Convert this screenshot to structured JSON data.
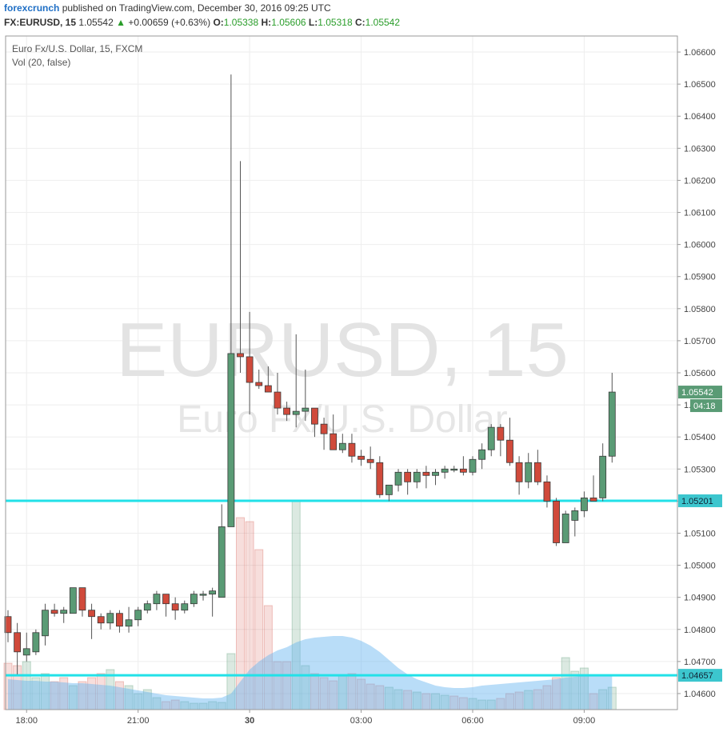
{
  "header": {
    "publisher": "forexcrunch",
    "published_text": "published on TradingView.com, December 30, 2016 09:25 UTC",
    "symbol": "FX:EURUSD, 15",
    "last": "1.05542",
    "change_arrow": "▲",
    "change": "+0.00659 (+0.63%)",
    "o_label": "O:",
    "o_value": "1.05338",
    "h_label": "H:",
    "h_value": "1.05606",
    "l_label": "L:",
    "l_value": "1.05318",
    "c_label": "C:",
    "c_value": "1.05542"
  },
  "legend": {
    "series_name": "Euro Fx/U.S. Dollar, 15, FXCM",
    "volume_name": "Vol (20, false)"
  },
  "watermark": {
    "line1": "EURUSD, 15",
    "line2": "Euro Fx/U.S. Dollar"
  },
  "colors": {
    "up": "#5a9b75",
    "down": "#d04a3b",
    "level_line": "#22e1e8",
    "volume_ma": "#9ed0f5",
    "price_tag": "#5a9b75",
    "level_tag": "#3cc6ce"
  },
  "chart_data": {
    "type": "candlestick",
    "y_axis": {
      "range": [
        1.0455,
        1.0665
      ],
      "ticks": [
        "1.06600",
        "1.06500",
        "1.06400",
        "1.06300",
        "1.06200",
        "1.06100",
        "1.06000",
        "1.05900",
        "1.05800",
        "1.05700",
        "1.05600",
        "1.05500",
        "1.05400",
        "1.05300",
        "1.05200",
        "1.05100",
        "1.05000",
        "1.04900",
        "1.04800",
        "1.04700",
        "1.04600"
      ]
    },
    "x_axis": {
      "ticks": [
        {
          "label": "18:00",
          "index": 2
        },
        {
          "label": "21:00",
          "index": 14
        },
        {
          "label": "30",
          "index": 26
        },
        {
          "label": "03:00",
          "index": 38
        },
        {
          "label": "06:00",
          "index": 50
        },
        {
          "label": "09:00",
          "index": 62
        }
      ]
    },
    "candles": [
      [
        1.0484,
        1.0486,
        1.0476,
        1.0479
      ],
      [
        1.0479,
        1.0482,
        1.0466,
        1.0473
      ],
      [
        1.0472,
        1.0479,
        1.047,
        1.0474
      ],
      [
        1.0473,
        1.048,
        1.0472,
        1.0479
      ],
      [
        1.0478,
        1.0488,
        1.0475,
        1.0486
      ],
      [
        1.0486,
        1.0488,
        1.0484,
        1.0485
      ],
      [
        1.0485,
        1.0487,
        1.0482,
        1.0486
      ],
      [
        1.0485,
        1.0493,
        1.0485,
        1.0493
      ],
      [
        1.0493,
        1.0493,
        1.0484,
        1.0486
      ],
      [
        1.0486,
        1.0488,
        1.0477,
        1.0484
      ],
      [
        1.0484,
        1.0485,
        1.048,
        1.0482
      ],
      [
        1.0482,
        1.0486,
        1.048,
        1.0485
      ],
      [
        1.0485,
        1.0486,
        1.0479,
        1.0481
      ],
      [
        1.0481,
        1.0487,
        1.0479,
        1.0483
      ],
      [
        1.0483,
        1.0487,
        1.0481,
        1.0486
      ],
      [
        1.0486,
        1.0489,
        1.0485,
        1.0488
      ],
      [
        1.0488,
        1.0492,
        1.0486,
        1.0491
      ],
      [
        1.0491,
        1.0491,
        1.0484,
        1.0488
      ],
      [
        1.0488,
        1.049,
        1.0483,
        1.0486
      ],
      [
        1.0486,
        1.0489,
        1.0485,
        1.0488
      ],
      [
        1.0488,
        1.0492,
        1.0487,
        1.0491
      ],
      [
        1.0491,
        1.0492,
        1.0489,
        1.0491
      ],
      [
        1.0491,
        1.0493,
        1.0484,
        1.0492
      ],
      [
        1.049,
        1.0519,
        1.049,
        1.0512
      ],
      [
        1.0512,
        1.0653,
        1.0512,
        1.0566
      ],
      [
        1.0566,
        1.0626,
        1.056,
        1.0565
      ],
      [
        1.0565,
        1.0579,
        1.0547,
        1.0557
      ],
      [
        1.0557,
        1.0561,
        1.0555,
        1.0556
      ],
      [
        1.0556,
        1.0562,
        1.0554,
        1.0554
      ],
      [
        1.0554,
        1.056,
        1.0547,
        1.0549
      ],
      [
        1.0549,
        1.0551,
        1.0545,
        1.0547
      ],
      [
        1.0547,
        1.0572,
        1.0543,
        1.0548
      ],
      [
        1.0548,
        1.0561,
        1.0545,
        1.0549
      ],
      [
        1.0549,
        1.0549,
        1.054,
        1.0544
      ],
      [
        1.0544,
        1.0546,
        1.0536,
        1.0541
      ],
      [
        1.0541,
        1.0547,
        1.0536,
        1.0536
      ],
      [
        1.0536,
        1.0541,
        1.0535,
        1.0538
      ],
      [
        1.0538,
        1.0541,
        1.0532,
        1.0534
      ],
      [
        1.0534,
        1.0536,
        1.0531,
        1.0533
      ],
      [
        1.0533,
        1.0537,
        1.053,
        1.0532
      ],
      [
        1.0532,
        1.0534,
        1.0521,
        1.0522
      ],
      [
        1.0522,
        1.0525,
        1.052,
        1.0525
      ],
      [
        1.0525,
        1.053,
        1.0523,
        1.0529
      ],
      [
        1.0529,
        1.053,
        1.0522,
        1.0526
      ],
      [
        1.0526,
        1.053,
        1.0524,
        1.0529
      ],
      [
        1.0529,
        1.0531,
        1.0524,
        1.0528
      ],
      [
        1.0528,
        1.053,
        1.0525,
        1.0529
      ],
      [
        1.0529,
        1.0531,
        1.0527,
        1.053
      ],
      [
        1.053,
        1.0531,
        1.0529,
        1.053
      ],
      [
        1.053,
        1.0534,
        1.0528,
        1.0529
      ],
      [
        1.0529,
        1.0534,
        1.0528,
        1.0533
      ],
      [
        1.0533,
        1.0538,
        1.053,
        1.0536
      ],
      [
        1.0536,
        1.0544,
        1.0534,
        1.0543
      ],
      [
        1.0543,
        1.0544,
        1.0534,
        1.0539
      ],
      [
        1.0539,
        1.0546,
        1.0531,
        1.0532
      ],
      [
        1.0532,
        1.0534,
        1.0522,
        1.0526
      ],
      [
        1.0526,
        1.0535,
        1.0524,
        1.0532
      ],
      [
        1.0532,
        1.0536,
        1.0525,
        1.0526
      ],
      [
        1.0526,
        1.0528,
        1.0518,
        1.052
      ],
      [
        1.052,
        1.0521,
        1.0506,
        1.0507
      ],
      [
        1.0507,
        1.0517,
        1.0507,
        1.0516
      ],
      [
        1.0514,
        1.0518,
        1.0509,
        1.0517
      ],
      [
        1.0517,
        1.0523,
        1.0515,
        1.0521
      ],
      [
        1.0521,
        1.0528,
        1.052,
        1.052
      ],
      [
        1.0521,
        1.0538,
        1.052,
        1.0534
      ],
      [
        1.0534,
        1.056,
        1.0532,
        1.0554
      ]
    ],
    "volume": [
      58,
      55,
      60,
      40,
      45,
      35,
      40,
      30,
      35,
      40,
      45,
      50,
      35,
      30,
      20,
      25,
      15,
      10,
      12,
      10,
      8,
      8,
      10,
      9,
      70,
      240,
      235,
      200,
      130,
      60,
      60,
      260,
      55,
      45,
      40,
      36,
      42,
      45,
      38,
      32,
      30,
      28,
      25,
      24,
      22,
      20,
      20,
      18,
      17,
      15,
      14,
      12,
      12,
      14,
      20,
      22,
      24,
      25,
      30,
      40,
      65,
      48,
      52,
      20,
      25,
      28
    ],
    "volume_direction": [
      "d",
      "d",
      "u",
      "u",
      "u",
      "d",
      "d",
      "u",
      "d",
      "d",
      "d",
      "u",
      "d",
      "u",
      "u",
      "u",
      "u",
      "d",
      "d",
      "u",
      "u",
      "u",
      "u",
      "u",
      "u",
      "d",
      "d",
      "d",
      "d",
      "d",
      "d",
      "u",
      "u",
      "d",
      "d",
      "d",
      "u",
      "d",
      "d",
      "d",
      "d",
      "u",
      "u",
      "d",
      "u",
      "d",
      "u",
      "u",
      "d",
      "d",
      "u",
      "u",
      "u",
      "d",
      "d",
      "d",
      "u",
      "d",
      "d",
      "d",
      "u",
      "u",
      "u",
      "d",
      "u",
      "u"
    ],
    "volume_ma": [
      38,
      37,
      36,
      36,
      35,
      35,
      34,
      33,
      33,
      32,
      31,
      30,
      28,
      26,
      24,
      22,
      20,
      18,
      17,
      16,
      15,
      14,
      14,
      15,
      20,
      35,
      50,
      60,
      68,
      74,
      78,
      84,
      88,
      90,
      91,
      92,
      92,
      90,
      86,
      80,
      72,
      62,
      52,
      44,
      38,
      34,
      30,
      28,
      27,
      27,
      28,
      30,
      31,
      32,
      33,
      34,
      35,
      36,
      37,
      38,
      40,
      41,
      42,
      42,
      43,
      44
    ],
    "level_lines": [
      1.05201,
      1.04657
    ],
    "level_labels": [
      "1.05201",
      "1.04657"
    ],
    "last_price_label": "1.05542",
    "countdown_label": "04:18"
  }
}
